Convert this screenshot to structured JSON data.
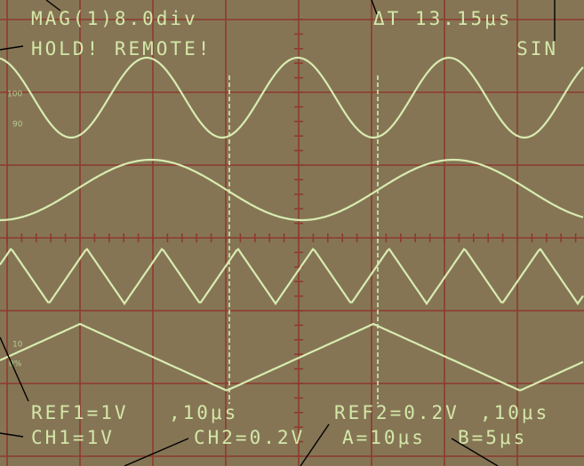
{
  "screen": {
    "top_left": "MAG(1)8.0div",
    "top_right": "ΔT 13.15μs",
    "status": "HOLD! REMOTE!",
    "mode": "SIN",
    "scale_marks": [
      "100",
      "90",
      "10",
      "0%"
    ],
    "ref1": "REF1=1V",
    "ref1_time": ",10μs",
    "ref2": "REF2=0.2V",
    "ref2_time": ",10μs",
    "ch1": "CH1=1V",
    "ch2": "CH2=0.2V",
    "timebase_a": "A=10μs",
    "timebase_b": "B=5μs"
  }
}
